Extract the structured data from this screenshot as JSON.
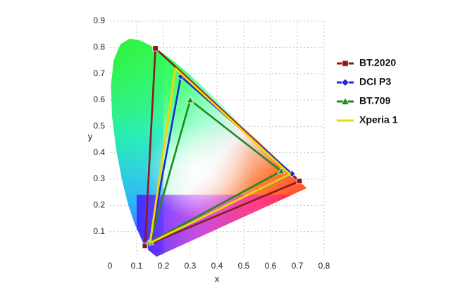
{
  "chart_data": {
    "type": "scatter",
    "subtype": "cie-1931-chromaticity-gamut",
    "title": "",
    "xlabel": "x",
    "ylabel": "y",
    "xlim": [
      0,
      0.8
    ],
    "ylim": [
      0,
      0.9
    ],
    "x_ticks": [
      "0",
      "0.1",
      "0.2",
      "0.3",
      "0.4",
      "0.5",
      "0.6",
      "0.7",
      "0.8"
    ],
    "y_ticks": [
      "0.1",
      "0.2",
      "0.3",
      "0.4",
      "0.5",
      "0.6",
      "0.7",
      "0.8",
      "0.9"
    ],
    "grid": true,
    "legend_position": "right",
    "series": [
      {
        "name": "BT.2020",
        "color": "#8b1a1a",
        "marker": "square",
        "points": [
          [
            0.708,
            0.292
          ],
          [
            0.17,
            0.797
          ],
          [
            0.131,
            0.046
          ]
        ]
      },
      {
        "name": "DCI P3",
        "color": "#1a2bd6",
        "marker": "diamond",
        "points": [
          [
            0.68,
            0.32
          ],
          [
            0.265,
            0.69
          ],
          [
            0.15,
            0.06
          ]
        ]
      },
      {
        "name": "BT.709",
        "color": "#1f8a1f",
        "marker": "triangle",
        "points": [
          [
            0.64,
            0.33
          ],
          [
            0.3,
            0.6
          ],
          [
            0.15,
            0.06
          ]
        ]
      },
      {
        "name": "Xperia 1",
        "color": "#f2d600",
        "marker": "none",
        "points": [
          [
            0.672,
            0.318
          ],
          [
            0.245,
            0.72
          ],
          [
            0.15,
            0.057
          ]
        ]
      }
    ]
  }
}
